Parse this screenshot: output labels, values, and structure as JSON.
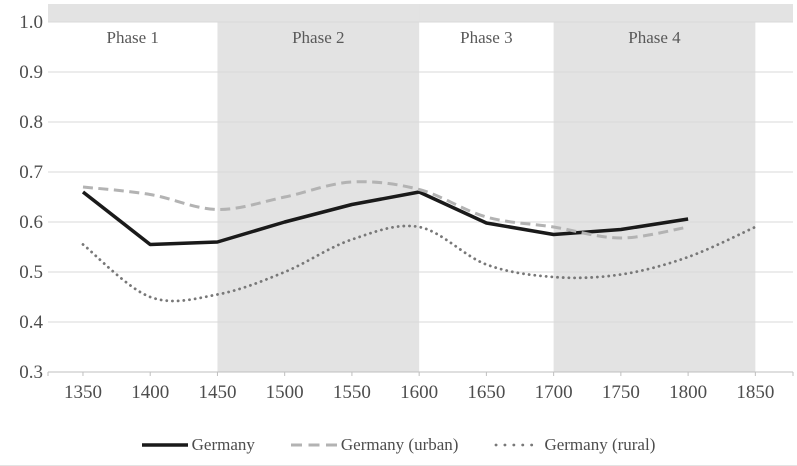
{
  "chart_data": {
    "type": "line",
    "title": "",
    "xlabel": "",
    "ylabel": "",
    "x": [
      1350,
      1400,
      1450,
      1500,
      1550,
      1600,
      1650,
      1700,
      1750,
      1800,
      1850
    ],
    "series": [
      {
        "name": "Germany",
        "style": "solid",
        "smooth": false,
        "color": "#1a1a1a",
        "values": [
          0.66,
          0.555,
          0.56,
          0.6,
          0.635,
          0.66,
          0.598,
          0.575,
          0.585,
          0.606,
          null
        ]
      },
      {
        "name": "Germany (urban)",
        "style": "dashed",
        "smooth": true,
        "color": "#b3b3b3",
        "values": [
          0.67,
          0.655,
          0.625,
          0.65,
          0.68,
          0.665,
          0.61,
          0.59,
          0.568,
          0.59,
          null
        ]
      },
      {
        "name": "Germany (rural)",
        "style": "dotted",
        "smooth": true,
        "color": "#787878",
        "values": [
          0.555,
          0.45,
          0.455,
          0.5,
          0.565,
          0.59,
          0.515,
          0.49,
          0.495,
          0.53,
          0.59
        ]
      }
    ],
    "xlim": [
      1324,
      1878
    ],
    "ylim": [
      0.3,
      1.036
    ],
    "ytick_labels": [
      "1.0",
      "0.9",
      "0.8",
      "0.7",
      "0.6",
      "0.5",
      "0.4",
      "0.3"
    ],
    "xtick_labels": [
      "1350",
      "1400",
      "1450",
      "1500",
      "1550",
      "1600",
      "1650",
      "1700",
      "1750",
      "1800",
      "1850"
    ],
    "grid": true,
    "legend_position": "bottom",
    "phases": [
      {
        "label": "Phase 1",
        "from": 1324,
        "to": 1450,
        "shaded": false
      },
      {
        "label": "Phase 2",
        "from": 1450,
        "to": 1600,
        "shaded": true
      },
      {
        "label": "Phase 3",
        "from": 1600,
        "to": 1700,
        "shaded": false
      },
      {
        "label": "Phase 4",
        "from": 1700,
        "to": 1850,
        "shaded": true
      }
    ],
    "top_strip_above_value": 1.0,
    "top_strip_shaded": true,
    "colors": {
      "band": "#e3e3e3",
      "gridline": "#d9d9d9",
      "axis": "#bfbfbf",
      "tick": "#bfbfbf",
      "label_text": "#4d4d4d",
      "phase_text": "#595959"
    }
  }
}
